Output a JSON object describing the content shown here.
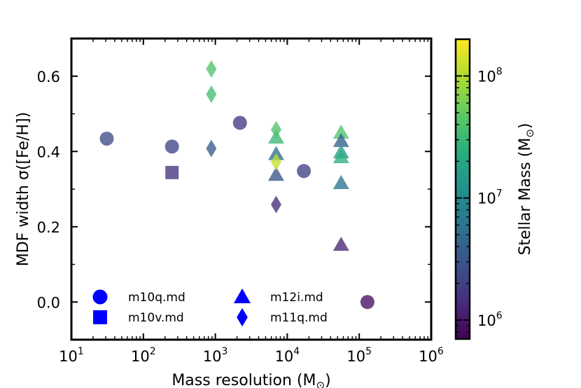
{
  "chart_data": {
    "type": "scatter",
    "xlabel": "Mass resolution (M",
    "xlabel_sub": "⊙",
    "xlabel_end": ")",
    "ylabel": "MDF width σ([Fe/H])",
    "xscale": "log",
    "xlim": [
      10,
      1000000
    ],
    "ylim": [
      -0.1,
      0.7
    ],
    "x_tick_labels": [
      {
        "value": 10,
        "base": "10",
        "exp": "1"
      },
      {
        "value": 100,
        "base": "10",
        "exp": "2"
      },
      {
        "value": 1000,
        "base": "10",
        "exp": "3"
      },
      {
        "value": 10000,
        "base": "10",
        "exp": "4"
      },
      {
        "value": 100000,
        "base": "10",
        "exp": "5"
      },
      {
        "value": 1000000,
        "base": "10",
        "exp": "6"
      }
    ],
    "y_tick_labels": [
      {
        "value": 0.0,
        "label": "0.0"
      },
      {
        "value": 0.2,
        "label": "0.2"
      },
      {
        "value": 0.4,
        "label": "0.4"
      },
      {
        "value": 0.6,
        "label": "0.6"
      }
    ],
    "colorbar": {
      "label": "Stellar Mass (M",
      "label_sub": "⊙",
      "label_end": ")",
      "colormap": "viridis",
      "scale": "log",
      "range": [
        700000,
        200000000
      ],
      "tick_labels": [
        {
          "value": 1000000,
          "base": "10",
          "exp": "6"
        },
        {
          "value": 10000000,
          "base": "10",
          "exp": "7"
        },
        {
          "value": 100000000,
          "base": "10",
          "exp": "8"
        }
      ]
    },
    "legend": {
      "position": "lower-left",
      "entries": [
        {
          "marker": "circle",
          "label": "m10q.md",
          "color": "#0000ff"
        },
        {
          "marker": "square",
          "label": "m10v.md",
          "color": "#0000ff"
        },
        {
          "marker": "triangle",
          "label": "m12i.md",
          "color": "#0000ff"
        },
        {
          "marker": "diamond",
          "label": "m11q.md",
          "color": "#0000ff"
        }
      ]
    },
    "series": [
      {
        "name": "m10q.md",
        "marker": "circle",
        "points": [
          {
            "x": 31,
            "y": 0.434,
            "mstar": 2500000
          },
          {
            "x": 250,
            "y": 0.413,
            "mstar": 2200000
          },
          {
            "x": 2200,
            "y": 0.476,
            "mstar": 1800000
          },
          {
            "x": 17000,
            "y": 0.348,
            "mstar": 2000000
          },
          {
            "x": 130000,
            "y": 0.0,
            "mstar": 900000
          }
        ]
      },
      {
        "name": "m10v.md",
        "marker": "square",
        "points": [
          {
            "x": 250,
            "y": 0.344,
            "mstar": 1600000
          }
        ]
      },
      {
        "name": "m12i.md",
        "marker": "triangle",
        "points": [
          {
            "x": 7000,
            "y": 0.437,
            "mstar": 30000000
          },
          {
            "x": 7000,
            "y": 0.393,
            "mstar": 5000000
          },
          {
            "x": 7000,
            "y": 0.338,
            "mstar": 3000000
          },
          {
            "x": 56000,
            "y": 0.45,
            "mstar": 40000000
          },
          {
            "x": 56000,
            "y": 0.428,
            "mstar": 4000000
          },
          {
            "x": 56000,
            "y": 0.398,
            "mstar": 15000000
          },
          {
            "x": 56000,
            "y": 0.385,
            "mstar": 25000000
          },
          {
            "x": 56000,
            "y": 0.316,
            "mstar": 6000000
          },
          {
            "x": 56000,
            "y": 0.152,
            "mstar": 1300000
          }
        ]
      },
      {
        "name": "m11q.md",
        "marker": "diamond",
        "points": [
          {
            "x": 880,
            "y": 0.619,
            "mstar": 40000000
          },
          {
            "x": 880,
            "y": 0.552,
            "mstar": 35000000
          },
          {
            "x": 880,
            "y": 0.408,
            "mstar": 3500000
          },
          {
            "x": 7000,
            "y": 0.458,
            "mstar": 40000000
          },
          {
            "x": 7000,
            "y": 0.372,
            "mstar": 120000000
          },
          {
            "x": 7000,
            "y": 0.259,
            "mstar": 1400000
          }
        ]
      }
    ]
  }
}
